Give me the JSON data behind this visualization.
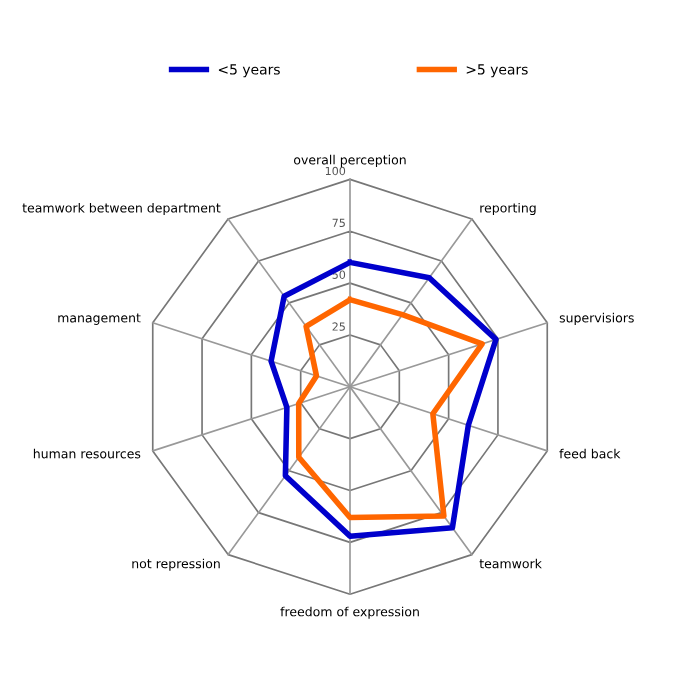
{
  "chart_data": {
    "type": "radar",
    "categories": [
      "overall perception",
      "reporting",
      "supervisiors",
      "feed back",
      "teamwork",
      "freedom of expression",
      "not repression",
      "human resources",
      "management",
      "teamwork between department"
    ],
    "series": [
      {
        "name": "<5 years",
        "color": "#0000cc",
        "values": [
          60,
          65,
          74,
          60,
          84,
          72,
          53,
          32,
          40,
          54
        ]
      },
      {
        "name": ">5 years",
        "color": "#ff6600",
        "values": [
          42,
          43,
          67,
          42,
          77,
          63,
          42,
          26,
          17,
          36
        ]
      }
    ],
    "ylim": [
      0,
      100
    ],
    "yticks": [
      25,
      50,
      75,
      100
    ],
    "grid": true,
    "legend": "top",
    "line_style": "solid",
    "marker": "none"
  }
}
